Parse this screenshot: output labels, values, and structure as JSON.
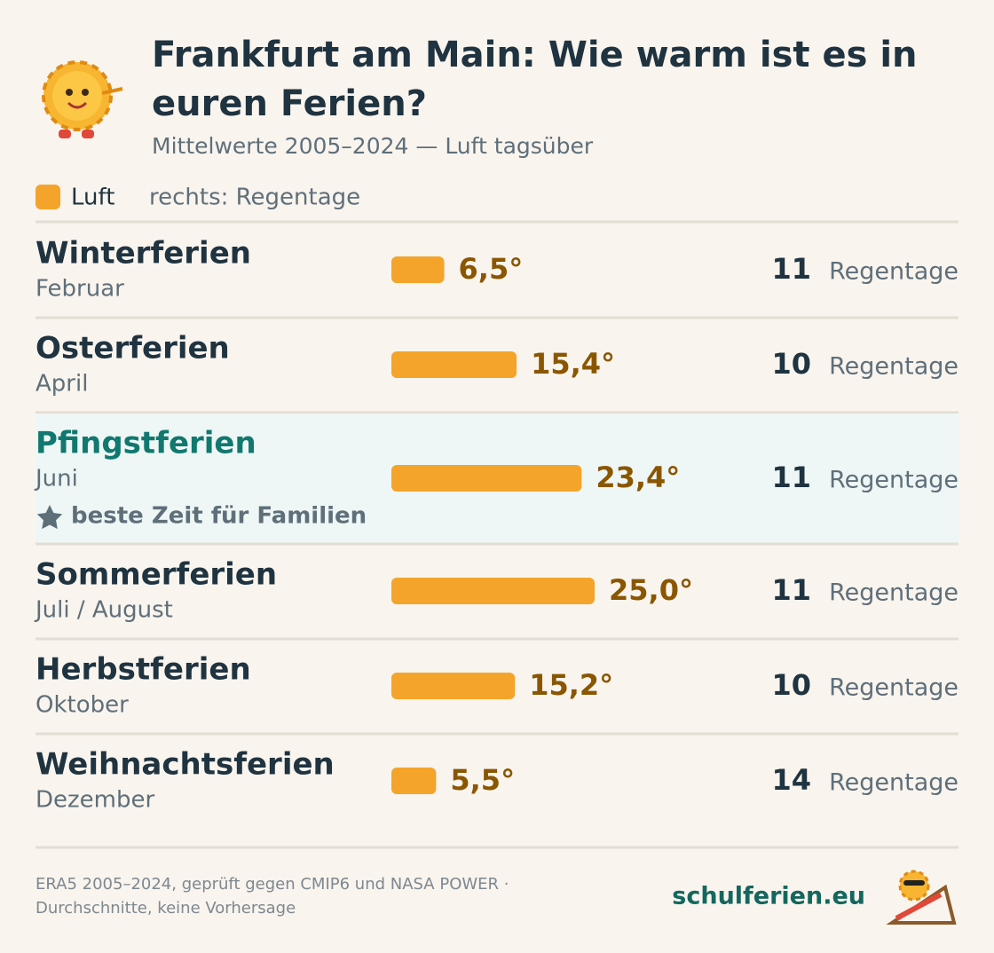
{
  "header": {
    "title_lines": [
      "Frankfurt am Main: Wie warm ist es in",
      "euren Ferien?"
    ],
    "subtitle": "Mittelwerte 2005–2024 — Luft tagsüber"
  },
  "legend": {
    "label": "Luft",
    "note": "rechts: Regentage"
  },
  "chart_data": {
    "type": "bar",
    "orientation": "horizontal",
    "color": "#f4a42a",
    "categories": [
      "Winterferien",
      "Osterferien",
      "Pfingstferien",
      "Sommerferien",
      "Herbstferien",
      "Weihnachtsferien"
    ],
    "periods": [
      "Februar",
      "April",
      "Juni",
      "Juli / August",
      "Oktober",
      "Dezember"
    ],
    "notes": [
      null,
      null,
      "beste Zeit für Familien",
      null,
      null,
      null
    ],
    "values": [
      6.5,
      15.4,
      23.4,
      25.0,
      15.2,
      5.5
    ],
    "value_labels": [
      "6,5°",
      "15,4°",
      "23,4°",
      "25,0°",
      "15,2°",
      "5,5°"
    ],
    "rain_days": [
      11,
      10,
      11,
      11,
      10,
      14
    ],
    "rain_label": "Regentage"
  },
  "footer": {
    "source_lines": [
      "ERA5 2005–2024, geprüft gegen CMIP6 und NASA POWER ·",
      "Durchschnitte, keine Vorhersage"
    ],
    "brand": "schulferien.eu"
  }
}
